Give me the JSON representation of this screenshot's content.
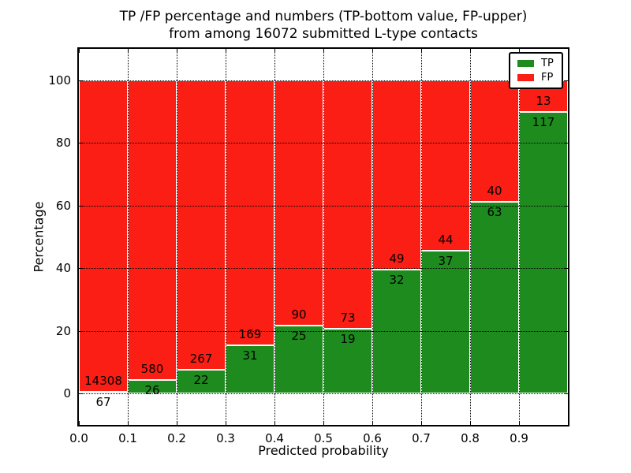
{
  "title": {
    "line1": "TP /FP percentage and numbers (TP-bottom value, FP-upper)",
    "line2": "from among 16072 submitted L-type contacts"
  },
  "chart_data": {
    "type": "bar",
    "stacked": true,
    "normalized_to_percent": true,
    "bin_width": 0.1,
    "bin_starts": [
      0.0,
      0.1,
      0.2,
      0.3,
      0.4,
      0.5,
      0.6,
      0.7,
      0.8,
      0.9
    ],
    "series": [
      {
        "name": "TP",
        "color": "#1e8b1e",
        "counts": [
          67,
          26,
          22,
          31,
          25,
          19,
          32,
          37,
          63,
          117
        ]
      },
      {
        "name": "FP",
        "color": "#fa1e14",
        "counts": [
          14308,
          580,
          267,
          169,
          90,
          73,
          49,
          44,
          40,
          13
        ]
      }
    ],
    "tp_percent_approx": [
      0.47,
      4.29,
      7.61,
      15.5,
      21.7,
      20.7,
      39.5,
      45.7,
      61.2,
      90.0
    ],
    "xlabel": "Predicted probability",
    "ylabel": "Percentage",
    "x_tick_labels": [
      "0.0",
      "0.1",
      "0.2",
      "0.3",
      "0.4",
      "0.5",
      "0.6",
      "0.7",
      "0.8",
      "0.9"
    ],
    "x_tick_values": [
      0.0,
      0.1,
      0.2,
      0.3,
      0.4,
      0.5,
      0.6,
      0.7,
      0.8,
      0.9
    ],
    "y_ticks": [
      0,
      20,
      40,
      60,
      80,
      100
    ],
    "xlim": [
      0.0,
      1.0
    ],
    "ylim": [
      -10,
      110
    ],
    "grid": "dotted-black-both-axes",
    "legend": {
      "position": "upper-right",
      "entries": [
        {
          "label": "TP",
          "color": "#1e8b1e"
        },
        {
          "label": "FP",
          "color": "#fa1e14"
        }
      ]
    }
  }
}
